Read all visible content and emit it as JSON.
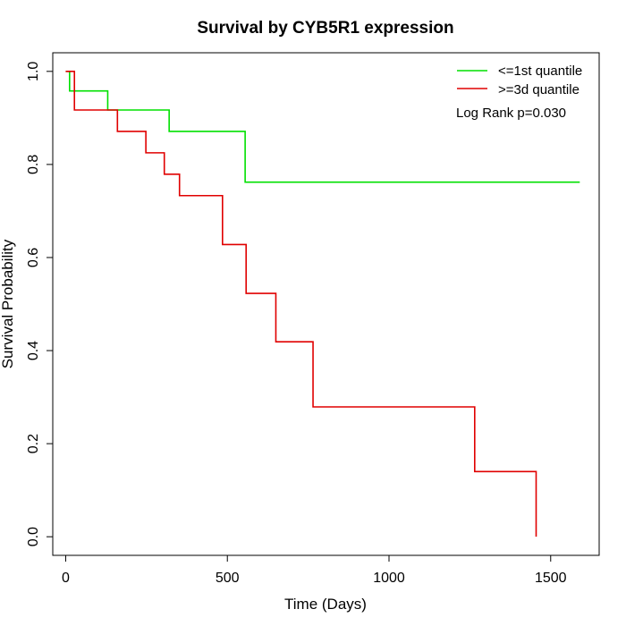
{
  "chart_data": {
    "type": "line",
    "title": "Survival by CYB5R1 expression",
    "xlabel": "Time (Days)",
    "ylabel": "Survival Probability",
    "xlim": [
      -40,
      1650
    ],
    "ylim": [
      -0.04,
      1.04
    ],
    "x_ticks": [
      0,
      500,
      1000,
      1500
    ],
    "x_tick_labels": [
      "0",
      "500",
      "1000",
      "1500"
    ],
    "y_ticks": [
      0.0,
      0.2,
      0.4,
      0.6,
      0.8,
      1.0
    ],
    "y_tick_labels": [
      "0.0",
      "0.2",
      "0.4",
      "0.6",
      "0.8",
      "1.0"
    ],
    "grid": false,
    "legend_position": "top-right",
    "annotation": "Log Rank p=0.030",
    "series": [
      {
        "name": "<=1st quantile",
        "color": "#00e000",
        "x": [
          0,
          12,
          130,
          320,
          555,
          1590
        ],
        "y": [
          1.0,
          0.958,
          0.917,
          0.871,
          0.762,
          0.762
        ]
      },
      {
        "name": ">=3d quantile",
        "color": "#e00000",
        "x": [
          0,
          27,
          160,
          248,
          305,
          352,
          485,
          558,
          650,
          765,
          1265,
          1455,
          1455
        ],
        "y": [
          1.0,
          0.917,
          0.871,
          0.825,
          0.779,
          0.733,
          0.628,
          0.523,
          0.419,
          0.279,
          0.14,
          0.14,
          0.0
        ]
      }
    ]
  }
}
